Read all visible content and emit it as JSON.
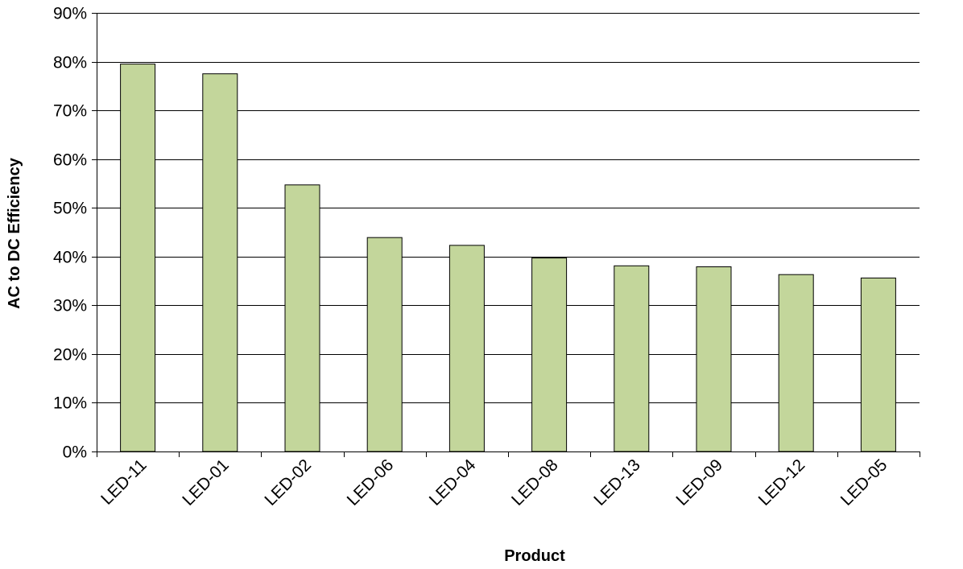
{
  "chart_data": {
    "type": "bar",
    "title": "",
    "xlabel": "Product",
    "ylabel": "AC to DC Efficiency",
    "categories": [
      "LED-11",
      "LED-01",
      "LED-02",
      "LED-06",
      "LED-04",
      "LED-08",
      "LED-13",
      "LED-09",
      "LED-12",
      "LED-05"
    ],
    "values": [
      79.5,
      77.5,
      54.7,
      43.9,
      42.3,
      39.7,
      38.1,
      37.9,
      36.3,
      35.6
    ],
    "ylim": [
      0,
      90
    ],
    "yticks": [
      0,
      10,
      20,
      30,
      40,
      50,
      60,
      70,
      80,
      90
    ],
    "ytick_labels": [
      "0%",
      "10%",
      "20%",
      "30%",
      "40%",
      "50%",
      "60%",
      "70%",
      "80%",
      "90%"
    ],
    "grid": true,
    "legend": "none",
    "colors": {
      "bar_fill": "#c3d69b",
      "bar_stroke": "#000000",
      "grid": "#000000",
      "axis": "#000000"
    }
  }
}
